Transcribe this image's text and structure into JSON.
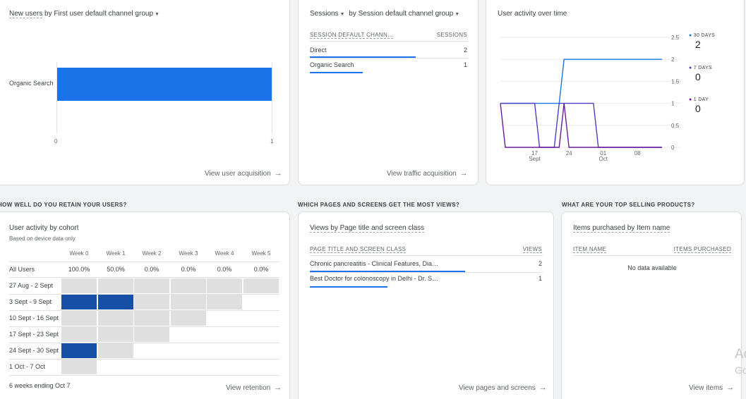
{
  "new_users": {
    "title_metric": "New users",
    "title_rest": " by First user default channel group",
    "category": "Organic Search",
    "value": 1,
    "axis_ticks": [
      "0",
      "1"
    ],
    "link": "View user acquisition"
  },
  "sessions": {
    "title_metric": "Sessions",
    "title_rest": "by Session default channel group",
    "col1": "SESSION DEFAULT CHANN…",
    "col2": "SESSIONS",
    "rows": [
      {
        "name": "Direct",
        "value": "2",
        "share": 1.0
      },
      {
        "name": "Organic Search",
        "value": "1",
        "share": 0.5
      }
    ],
    "link": "View traffic acquisition"
  },
  "activity": {
    "title": "User activity over time",
    "y_ticks": [
      "2.5",
      "2",
      "1.5",
      "1",
      "0.5",
      "0"
    ],
    "x_ticks": [
      {
        "d": "17",
        "m": "Sept"
      },
      {
        "d": "24",
        "m": ""
      },
      {
        "d": "01",
        "m": "Oct"
      },
      {
        "d": "08",
        "m": ""
      }
    ],
    "legend": [
      {
        "label": "30 DAYS",
        "value": "2",
        "color": "#1a73e8"
      },
      {
        "label": "7 DAYS",
        "value": "0",
        "color": "#4b3fce"
      },
      {
        "label": "1 DAY",
        "value": "0",
        "color": "#6a1b9a"
      }
    ]
  },
  "chart_data": {
    "type": "line",
    "x": [
      "Sep 10",
      "Sep 11",
      "Sep 12",
      "Sep 13",
      "Sep 14",
      "Sep 15",
      "Sep 16",
      "Sep 17",
      "Sep 18",
      "Sep 19",
      "Sep 20",
      "Sep 21",
      "Sep 22",
      "Sep 23",
      "Sep 24",
      "Sep 25",
      "Sep 26",
      "Sep 27",
      "Sep 28",
      "Sep 29",
      "Sep 30",
      "Oct 01",
      "Oct 02",
      "Oct 03",
      "Oct 04",
      "Oct 05",
      "Oct 06",
      "Oct 07",
      "Oct 08",
      "Oct 09",
      "Oct 10",
      "Oct 11",
      "Oct 12",
      "Oct 13"
    ],
    "series": [
      {
        "name": "30 DAYS",
        "values": [
          1,
          1,
          1,
          1,
          1,
          1,
          1,
          1,
          1,
          1,
          1,
          1,
          1,
          2,
          2,
          2,
          2,
          2,
          2,
          2,
          2,
          2,
          2,
          2,
          2,
          2,
          2,
          2,
          2,
          2,
          2,
          2,
          2,
          2
        ]
      },
      {
        "name": "7 DAYS",
        "values": [
          1,
          1,
          1,
          1,
          1,
          1,
          1,
          1,
          0,
          0,
          0,
          0,
          1,
          1,
          1,
          1,
          1,
          1,
          1,
          1,
          0,
          0,
          0,
          0,
          0,
          0,
          0,
          0,
          0,
          0,
          0,
          0,
          0,
          0
        ]
      },
      {
        "name": "1 DAY",
        "values": [
          1,
          0,
          0,
          0,
          0,
          0,
          0,
          0,
          0,
          0,
          0,
          0,
          0,
          1,
          0,
          0,
          0,
          0,
          0,
          0,
          0,
          0,
          0,
          0,
          0,
          0,
          0,
          0,
          0,
          0,
          0,
          0,
          0,
          0
        ]
      }
    ],
    "ylim": [
      0,
      2.5
    ]
  },
  "retention": {
    "section": "HOW WELL DO YOU RETAIN YOUR USERS?",
    "title": "User activity by cohort",
    "subtitle": "Based on device data only",
    "weeks": [
      "Week 0",
      "Week 1",
      "Week 2",
      "Week 3",
      "Week 4",
      "Week 5"
    ],
    "all_users": {
      "label": "All Users",
      "values": [
        "100.0%",
        "50.0%",
        "0.0%",
        "0.0%",
        "0.0%",
        "0.0%"
      ]
    },
    "cohorts": [
      {
        "label": "27 Aug - 2 Sept",
        "levels": [
          0,
          0,
          0,
          0,
          0,
          0
        ]
      },
      {
        "label": "3 Sept - 9 Sept",
        "levels": [
          1,
          1,
          0,
          0,
          0
        ]
      },
      {
        "label": "10 Sept - 16 Sept",
        "levels": [
          0,
          0,
          0,
          0
        ]
      },
      {
        "label": "17 Sept - 23 Sept",
        "levels": [
          0,
          0,
          0
        ]
      },
      {
        "label": "24 Sept - 30 Sept",
        "levels": [
          1,
          0
        ]
      },
      {
        "label": "1 Oct - 7 Oct",
        "levels": [
          0
        ]
      }
    ],
    "footer": "6 weeks ending Oct 7",
    "link": "View retention"
  },
  "pages": {
    "section": "WHICH PAGES AND SCREENS GET THE MOST VIEWS?",
    "title": "Views by Page title and screen class",
    "col1": "PAGE TITLE AND SCREEN CLASS",
    "col2": "VIEWS",
    "rows": [
      {
        "name": "Chronic pancreatitis - Clinical Features, Dia…",
        "value": "2",
        "share": 1.0
      },
      {
        "name": "Best Doctor for colonoscopy in Delhi - Dr. S…",
        "value": "1",
        "share": 0.5
      }
    ],
    "link": "View pages and screens"
  },
  "products": {
    "section": "WHAT ARE YOUR TOP SELLING PRODUCTS?",
    "title": "Items purchased by Item name",
    "col1": "ITEM NAME",
    "col2": "ITEMS PURCHASED",
    "empty": "No data available",
    "link": "View items"
  },
  "watermark": {
    "line1": "Ac",
    "line2": "Go"
  }
}
